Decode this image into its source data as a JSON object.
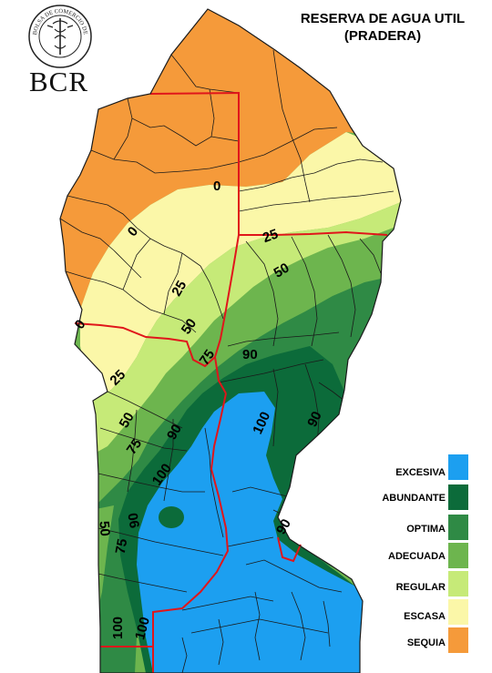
{
  "title": {
    "line1": "RESERVA DE AGUA UTIL",
    "line2": "(PRADERA)"
  },
  "logo": {
    "brand": "BCR",
    "seal_text": "BOLSA DE COMERCIO DE ROSARIO",
    "icon": "caduceus-seal-icon"
  },
  "legend": [
    {
      "label": "EXCESIVA",
      "color": "#1c9ff0"
    },
    {
      "label": "ABUNDANTE",
      "color": "#0c6b3a"
    },
    {
      "label": "OPTIMA",
      "color": "#2f8a45"
    },
    {
      "label": "ADECUADA",
      "color": "#6db54e"
    },
    {
      "label": "REGULAR",
      "color": "#c6ea78"
    },
    {
      "label": "ESCASA",
      "color": "#fbf7a8"
    },
    {
      "label": "SEQUIA",
      "color": "#f59a3a"
    }
  ],
  "contour_labels": [
    "0",
    "0",
    "0",
    "25",
    "25",
    "25",
    "50",
    "50",
    "50",
    "50",
    "75",
    "75",
    "75",
    "90",
    "90",
    "90",
    "90",
    "90",
    "100",
    "100",
    "100",
    "100"
  ],
  "colors": {
    "province_border": "#e0161b",
    "district_border": "#1a1a1a"
  }
}
